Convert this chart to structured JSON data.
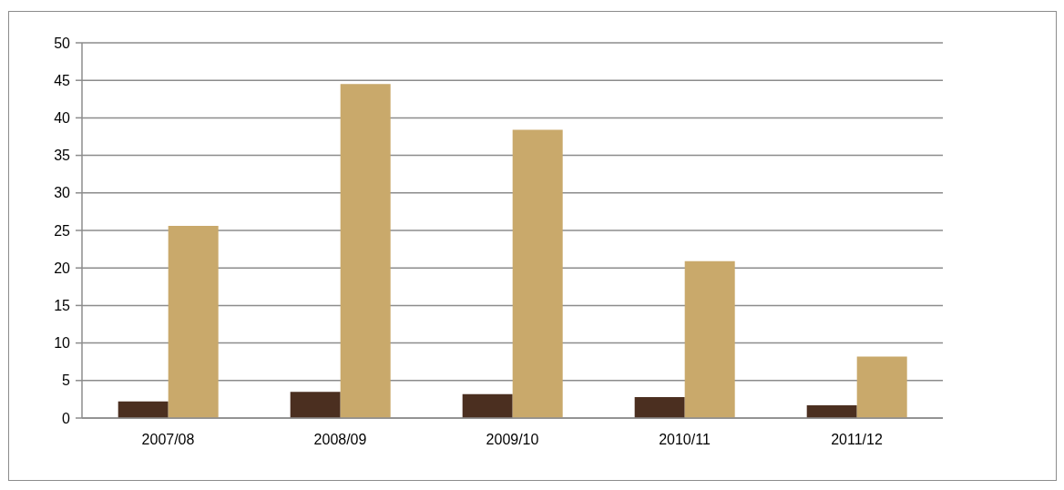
{
  "chart_data": {
    "type": "bar",
    "categories": [
      "2007/08",
      "2008/09",
      "2009/10",
      "2010/11",
      "2011/12"
    ],
    "series": [
      {
        "color": "#4b2f20",
        "values": [
          2.2,
          3.5,
          3.2,
          2.8,
          1.7
        ]
      },
      {
        "color": "#c9a96b",
        "values": [
          25.6,
          44.5,
          38.4,
          20.9,
          8.2
        ]
      }
    ],
    "ylim": [
      0,
      50
    ],
    "yticks": [
      0,
      5,
      10,
      15,
      20,
      25,
      30,
      35,
      40,
      45,
      50
    ],
    "grid": "y"
  }
}
